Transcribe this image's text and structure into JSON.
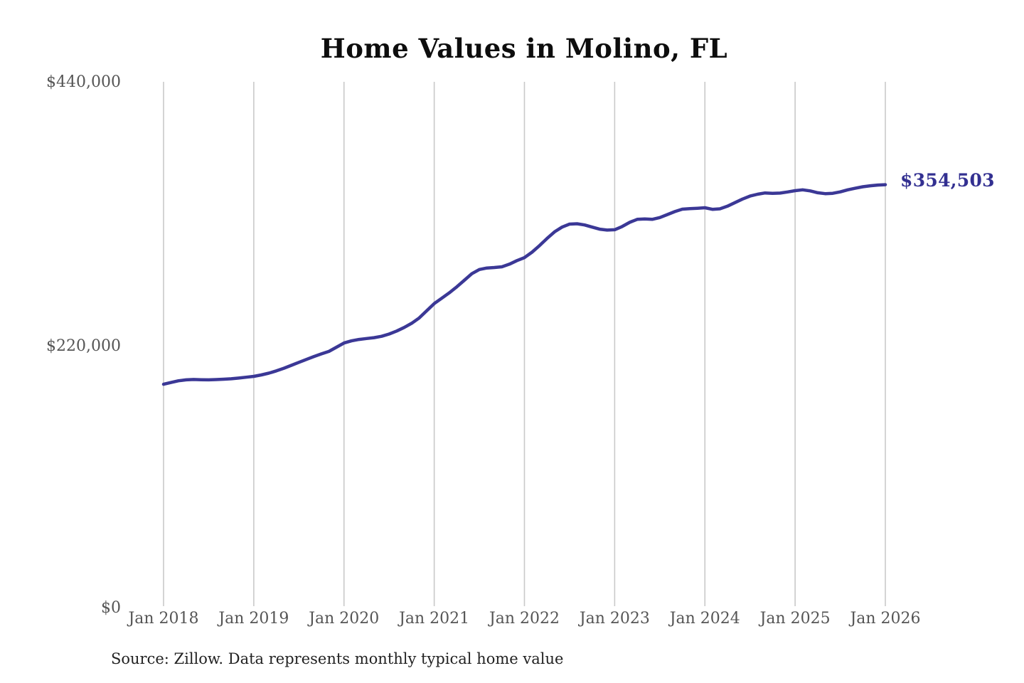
{
  "title": "Home Values in Molino, FL",
  "annotation": {
    "value_label": "$354,503"
  },
  "source_note": "Source: Zillow. Data represents monthly typical home value",
  "colors": {
    "background": "#ffffff",
    "line": "#3b3896",
    "annotation": "#333091",
    "grid": "#c9c9c9",
    "axis_labels": "#555555",
    "title": "#0d0d0d",
    "source": "#222222"
  },
  "chart_data": {
    "type": "line",
    "title": "Home Values in Molino, FL",
    "xlabel": "",
    "ylabel": "",
    "ylim": [
      0,
      440000
    ],
    "y_tick_labels": [
      "$0",
      "$220,000",
      "$440,000"
    ],
    "y_tick_values": [
      0,
      220000,
      440000
    ],
    "x_tick_labels": [
      "Jan 2018",
      "Jan 2019",
      "Jan 2020",
      "Jan 2021",
      "Jan 2022",
      "Jan 2023",
      "Jan 2024",
      "Jan 2025",
      "Jan 2026"
    ],
    "x_start": "Jan 2018",
    "x_end": "Jan 2026",
    "frequency": "monthly",
    "grid": "vertical-only",
    "legend": "none",
    "end_annotation": "$354,503",
    "series": [
      {
        "name": "Typical home value",
        "values": [
          187500,
          189000,
          190400,
          191200,
          191500,
          191300,
          191200,
          191400,
          191700,
          192100,
          192700,
          193400,
          194100,
          195300,
          196800,
          198700,
          200900,
          203300,
          205800,
          208300,
          210700,
          212900,
          215000,
          218500,
          222000,
          223800,
          225000,
          225800,
          226500,
          227600,
          229500,
          232000,
          235000,
          238500,
          243000,
          249000,
          255000,
          259500,
          264000,
          269000,
          274500,
          280000,
          283500,
          284800,
          285200,
          285800,
          288000,
          291000,
          293500,
          298000,
          303500,
          309500,
          315000,
          319000,
          321500,
          321800,
          320800,
          319000,
          317300,
          316500,
          316800,
          319500,
          323000,
          325500,
          325800,
          325500,
          327000,
          329500,
          332000,
          334000,
          334500,
          334800,
          335200,
          333900,
          334300,
          336500,
          339500,
          342500,
          345000,
          346500,
          347600,
          347300,
          347500,
          348400,
          349500,
          350200,
          349300,
          347800,
          347000,
          347300,
          348500,
          350200,
          351500,
          352800,
          353600,
          354200,
          354503
        ]
      }
    ]
  }
}
